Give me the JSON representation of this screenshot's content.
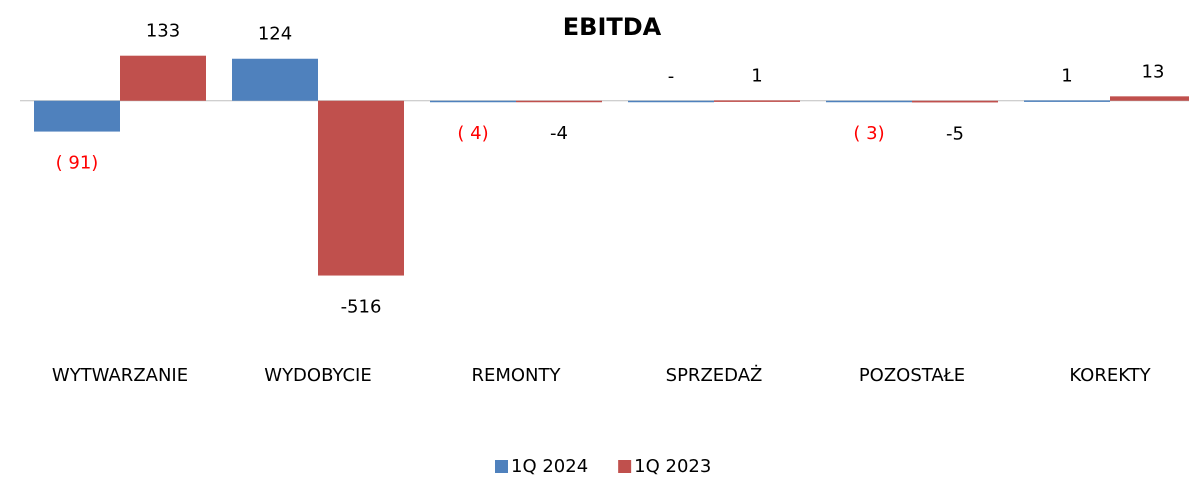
{
  "chart_data": {
    "type": "bar",
    "title": "EBITDA",
    "categories": [
      "WYTWARZANIE",
      "WYDOBYCIE",
      "REMONTY",
      "SPRZEDAŻ",
      "POZOSTAŁE",
      "KOREKTY"
    ],
    "series": [
      {
        "name": "1Q 2024",
        "color": "#4f81bd",
        "values": [
          -91,
          124,
          -4,
          0,
          -3,
          1
        ],
        "value_labels": [
          "( 91)",
          "124",
          "( 4)",
          "-",
          "( 3)",
          "1"
        ],
        "negative_label_color": "#ff0000"
      },
      {
        "name": "1Q 2023",
        "color": "#c0504d",
        "values": [
          133,
          -516,
          -4,
          1,
          -5,
          13
        ]
      }
    ],
    "ylim": [
      -600,
      200
    ],
    "legend": "bottom"
  }
}
